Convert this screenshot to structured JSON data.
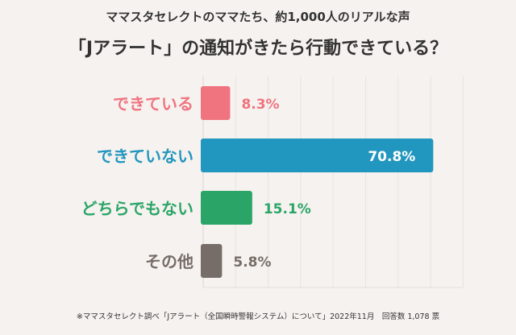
{
  "header": {
    "subtitle": "ママスタセレクトのママたち、約1,000人のリアルな声",
    "title": "「Jアラート」の通知がきたら行動できている？"
  },
  "chart_data": {
    "type": "bar",
    "orientation": "horizontal",
    "title": "「Jアラート」の通知がきたら行動できている？",
    "categories": [
      "できている",
      "できていない",
      "どちらでもない",
      "その他"
    ],
    "values": [
      8.3,
      70.8,
      15.1,
      5.8
    ],
    "labels": [
      "8.3%",
      "70.8%",
      "15.1%",
      "5.8%"
    ],
    "colors": [
      "#ef7480",
      "#2196be",
      "#2ba567",
      "#766d68"
    ],
    "unit": "%",
    "xlim": [
      0,
      80
    ],
    "grid": true
  },
  "footer": {
    "note": "※ママスタセレクト調べ「Jアラート（全国瞬時警報システム）について」2022年11月　回答数 1,078 票"
  }
}
